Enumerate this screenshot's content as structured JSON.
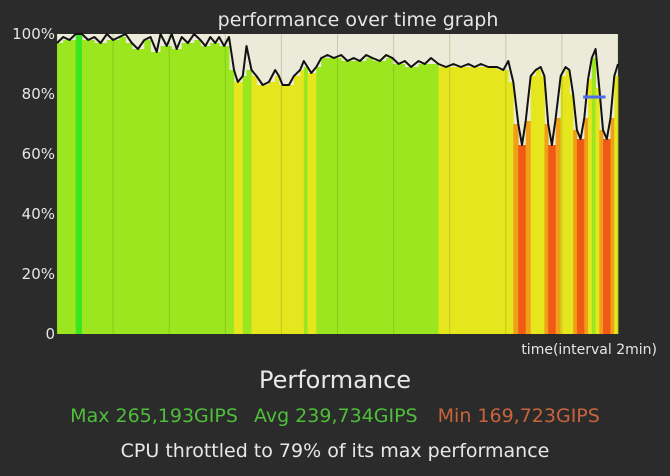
{
  "chart_data": {
    "type": "line",
    "title": "performance over time graph",
    "xlabel": "time(interval 2min)",
    "ylabel": "",
    "ylim": [
      0,
      100
    ],
    "ytick_labels": [
      "0",
      "20%",
      "40%",
      "60%",
      "80%",
      "100%"
    ],
    "grid": "vertical interval lines",
    "background_color": "#ecead8",
    "line_color": "#111111",
    "average_marker_color": "#4a6cf0",
    "average_marker": {
      "x_range": [
        42.2,
        44.0
      ],
      "y": 79
    },
    "x_range": [
      0,
      45
    ],
    "color_scale": [
      {
        "level": 100,
        "color": "#3ce61e"
      },
      {
        "level": 90,
        "color": "#9be61e"
      },
      {
        "level": 82,
        "color": "#e6e61e"
      },
      {
        "level": 72,
        "color": "#f0a018"
      },
      {
        "level": 62,
        "color": "#f05a14"
      }
    ],
    "series": [
      {
        "values": [
          [
            0,
            97
          ],
          [
            0.5,
            99
          ],
          [
            1,
            98
          ],
          [
            1.5,
            100
          ],
          [
            2,
            100
          ],
          [
            2.5,
            98
          ],
          [
            3,
            99
          ],
          [
            3.5,
            97
          ],
          [
            4,
            100
          ],
          [
            4.5,
            98
          ],
          [
            5,
            99
          ],
          [
            5.5,
            100
          ],
          [
            6,
            97
          ],
          [
            6.5,
            95
          ],
          [
            7,
            98
          ],
          [
            7.5,
            99
          ],
          [
            8,
            94
          ],
          [
            8.3,
            100
          ],
          [
            8.8,
            96
          ],
          [
            9.2,
            100
          ],
          [
            9.6,
            95
          ],
          [
            10,
            99
          ],
          [
            10.5,
            97
          ],
          [
            11,
            100
          ],
          [
            11.5,
            98
          ],
          [
            11.9,
            96
          ],
          [
            12.3,
            99
          ],
          [
            12.7,
            97
          ],
          [
            13,
            99
          ],
          [
            13.4,
            96
          ],
          [
            13.8,
            99
          ],
          [
            14.2,
            88
          ],
          [
            14.5,
            84
          ],
          [
            14.9,
            86
          ],
          [
            15.2,
            96
          ],
          [
            15.6,
            88
          ],
          [
            16,
            86
          ],
          [
            16.5,
            83
          ],
          [
            17,
            84
          ],
          [
            17.5,
            88
          ],
          [
            17.8,
            86
          ],
          [
            18.1,
            83
          ],
          [
            18.6,
            83
          ],
          [
            19,
            86
          ],
          [
            19.5,
            88
          ],
          [
            19.8,
            91
          ],
          [
            20.1,
            89
          ],
          [
            20.4,
            87
          ],
          [
            20.8,
            89
          ],
          [
            21.2,
            92
          ],
          [
            21.7,
            93
          ],
          [
            22.2,
            92
          ],
          [
            22.8,
            93
          ],
          [
            23.3,
            91
          ],
          [
            23.8,
            92
          ],
          [
            24.3,
            91
          ],
          [
            24.8,
            93
          ],
          [
            25.3,
            92
          ],
          [
            25.9,
            91
          ],
          [
            26.4,
            93
          ],
          [
            26.9,
            92
          ],
          [
            27.4,
            90
          ],
          [
            27.9,
            91
          ],
          [
            28.4,
            89
          ],
          [
            29,
            91
          ],
          [
            29.5,
            90
          ],
          [
            30,
            92
          ],
          [
            30.6,
            90
          ],
          [
            31.2,
            89
          ],
          [
            31.8,
            90
          ],
          [
            32.4,
            89
          ],
          [
            33,
            90
          ],
          [
            33.5,
            89
          ],
          [
            34,
            90
          ],
          [
            34.6,
            89
          ],
          [
            35.3,
            89
          ],
          [
            35.8,
            88
          ],
          [
            36.2,
            91
          ],
          [
            36.6,
            84
          ],
          [
            37,
            70
          ],
          [
            37.3,
            63
          ],
          [
            37.6,
            71
          ],
          [
            38,
            86
          ],
          [
            38.4,
            88
          ],
          [
            38.8,
            89
          ],
          [
            39.1,
            86
          ],
          [
            39.4,
            70
          ],
          [
            39.7,
            63
          ],
          [
            40,
            72
          ],
          [
            40.4,
            86
          ],
          [
            40.8,
            89
          ],
          [
            41.1,
            88
          ],
          [
            41.4,
            80
          ],
          [
            41.7,
            68
          ],
          [
            42,
            65
          ],
          [
            42.3,
            72
          ],
          [
            42.6,
            85
          ],
          [
            42.9,
            92
          ],
          [
            43.2,
            95
          ],
          [
            43.5,
            82
          ],
          [
            43.8,
            68
          ],
          [
            44.1,
            65
          ],
          [
            44.4,
            72
          ],
          [
            44.7,
            86
          ],
          [
            45,
            90
          ]
        ]
      }
    ]
  },
  "footer": {
    "heading": "Performance",
    "max": "Max 265,193GIPS",
    "avg": "Avg 239,734GIPS",
    "min": "Min 169,723GIPS",
    "throttle": "CPU throttled to 79% of its max performance"
  }
}
